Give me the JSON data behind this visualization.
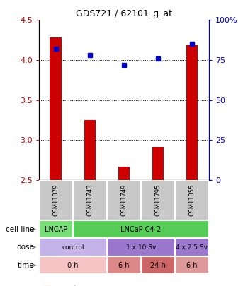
{
  "title": "GDS721 / 62101_g_at",
  "samples": [
    "GSM11879",
    "GSM11743",
    "GSM11749",
    "GSM11795",
    "GSM11855"
  ],
  "count_values": [
    4.28,
    3.25,
    2.67,
    2.92,
    4.19
  ],
  "percentile_values": [
    82,
    78,
    72,
    76,
    85
  ],
  "ylim_left": [
    2.5,
    4.5
  ],
  "ylim_right": [
    0,
    100
  ],
  "yticks_left": [
    2.5,
    3.0,
    3.5,
    4.0,
    4.5
  ],
  "yticks_right": [
    0,
    25,
    50,
    75,
    100
  ],
  "bar_color": "#cc0000",
  "dot_color": "#0000cc",
  "cell_line_colors": [
    "#77dd77",
    "#55cc55"
  ],
  "cell_line_texts": [
    "LNCAP",
    "LNCaP C4-2"
  ],
  "cell_line_spans": [
    1,
    4
  ],
  "dose_colors": [
    "#c4b3e8",
    "#9977cc",
    "#9977cc"
  ],
  "dose_texts": [
    "control",
    "1 x 10 Sv",
    "4 x 2.5 Sv"
  ],
  "dose_spans": [
    2,
    2,
    1
  ],
  "time_colors": [
    "#f5c5c5",
    "#dd8888",
    "#cc6666",
    "#dd9999"
  ],
  "time_texts": [
    "0 h",
    "6 h",
    "24 h",
    "6 h"
  ],
  "time_spans": [
    2,
    1,
    1,
    1
  ],
  "sample_bg_color": "#c8c8c8",
  "left_axis_color": "#cc0000",
  "right_axis_color": "#0000cc"
}
